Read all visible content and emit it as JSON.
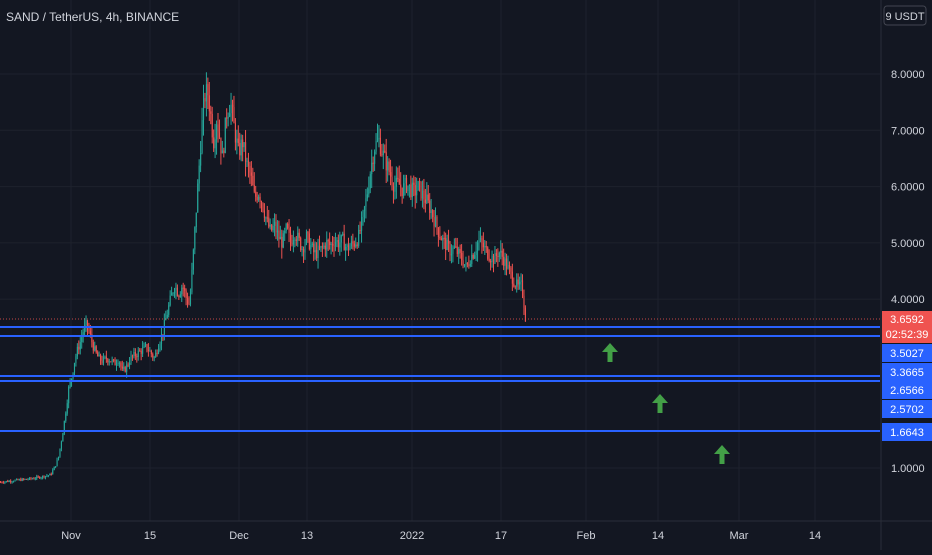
{
  "header": {
    "title": "SAND / TetherUS, 4h, BINANCE"
  },
  "colors": {
    "background": "#131722",
    "grid": "#1e222d",
    "axis_text": "#d1d4dc",
    "up": "#26a69a",
    "down": "#ef5350",
    "level_line": "#2962ff",
    "arrow": "#43a047",
    "price_dot_line": "#ef5350"
  },
  "chart_data": {
    "type": "candlestick",
    "price_scale": {
      "unit_label": "9 USDT",
      "ticks": [
        "8.0000",
        "7.0000",
        "6.0000",
        "5.0000",
        "4.0000",
        "1.0000"
      ],
      "tick_values": [
        8,
        7,
        6,
        5,
        4,
        1
      ]
    },
    "time_axis": {
      "labels": [
        "Nov",
        "15",
        "Dec",
        "13",
        "2022",
        "17",
        "Feb",
        "14",
        "Mar",
        "14"
      ]
    },
    "current_price": {
      "value": "3.6592",
      "countdown": "02:52:39"
    },
    "levels": [
      {
        "label": "3.5027"
      },
      {
        "label": "3.3665"
      },
      {
        "label": "2.6566"
      },
      {
        "label": "2.5702"
      },
      {
        "label": "1.6643"
      }
    ],
    "price_path": [
      [
        0,
        0.75
      ],
      [
        10,
        0.77
      ],
      [
        20,
        0.79
      ],
      [
        30,
        0.81
      ],
      [
        40,
        0.84
      ],
      [
        50,
        0.88
      ],
      [
        55,
        1.05
      ],
      [
        58,
        1.2
      ],
      [
        62,
        1.6
      ],
      [
        66,
        2.1
      ],
      [
        68,
        2.4
      ],
      [
        71,
        2.6
      ],
      [
        74,
        2.9
      ],
      [
        77,
        3.1
      ],
      [
        80,
        3.25
      ],
      [
        83,
        3.45
      ],
      [
        86,
        3.55
      ],
      [
        89,
        3.4
      ],
      [
        92,
        3.2
      ],
      [
        95,
        3.05
      ],
      [
        98,
        2.95
      ],
      [
        102,
        2.9
      ],
      [
        106,
        2.95
      ],
      [
        110,
        2.92
      ],
      [
        114,
        2.85
      ],
      [
        118,
        2.95
      ],
      [
        122,
        2.7
      ],
      [
        126,
        2.8
      ],
      [
        130,
        2.95
      ],
      [
        134,
        3.0
      ],
      [
        138,
        3.05
      ],
      [
        142,
        3.1
      ],
      [
        146,
        3.15
      ],
      [
        150,
        3.05
      ],
      [
        154,
        2.95
      ],
      [
        158,
        3.2
      ],
      [
        162,
        3.4
      ],
      [
        166,
        3.7
      ],
      [
        170,
        4.0
      ],
      [
        174,
        4.25
      ],
      [
        178,
        4.1
      ],
      [
        182,
        4.25
      ],
      [
        186,
        4.0
      ],
      [
        189,
        3.9
      ],
      [
        192,
        4.6
      ],
      [
        195,
        5.4
      ],
      [
        198,
        6.2
      ],
      [
        201,
        7.0
      ],
      [
        204,
        7.6
      ],
      [
        207,
        7.7
      ],
      [
        210,
        7.3
      ],
      [
        213,
        6.8
      ],
      [
        216,
        7.2
      ],
      [
        219,
        6.9
      ],
      [
        222,
        6.5
      ],
      [
        226,
        7.3
      ],
      [
        230,
        7.5
      ],
      [
        234,
        7.0
      ],
      [
        238,
        6.6
      ],
      [
        242,
        6.8
      ],
      [
        246,
        6.4
      ],
      [
        250,
        6.2
      ],
      [
        254,
        5.8
      ],
      [
        258,
        5.9
      ],
      [
        262,
        5.7
      ],
      [
        266,
        5.4
      ],
      [
        270,
        5.2
      ],
      [
        274,
        5.3
      ],
      [
        278,
        5.1
      ],
      [
        282,
        5.0
      ],
      [
        286,
        5.25
      ],
      [
        290,
        5.0
      ],
      [
        294,
        5.2
      ],
      [
        298,
        5.05
      ],
      [
        302,
        4.9
      ],
      [
        306,
        5.1
      ],
      [
        310,
        4.95
      ],
      [
        314,
        4.8
      ],
      [
        318,
        4.85
      ],
      [
        322,
        4.9
      ],
      [
        326,
        5.0
      ],
      [
        330,
        4.95
      ],
      [
        334,
        5.05
      ],
      [
        338,
        5.0
      ],
      [
        342,
        5.05
      ],
      [
        346,
        4.9
      ],
      [
        350,
        4.95
      ],
      [
        354,
        5.0
      ],
      [
        358,
        5.1
      ],
      [
        362,
        5.4
      ],
      [
        366,
        5.8
      ],
      [
        370,
        6.3
      ],
      [
        374,
        6.7
      ],
      [
        378,
        6.85
      ],
      [
        382,
        6.6
      ],
      [
        386,
        6.4
      ],
      [
        390,
        6.2
      ],
      [
        394,
        6.0
      ],
      [
        398,
        6.05
      ],
      [
        402,
        5.95
      ],
      [
        406,
        6.05
      ],
      [
        410,
        5.95
      ],
      [
        414,
        5.9
      ],
      [
        418,
        6.0
      ],
      [
        422,
        5.85
      ],
      [
        426,
        5.75
      ],
      [
        430,
        5.6
      ],
      [
        434,
        5.4
      ],
      [
        438,
        5.2
      ],
      [
        442,
        5.05
      ],
      [
        446,
        4.95
      ],
      [
        450,
        4.85
      ],
      [
        454,
        4.9
      ],
      [
        458,
        4.8
      ],
      [
        462,
        4.7
      ],
      [
        466,
        4.55
      ],
      [
        470,
        4.75
      ],
      [
        474,
        4.85
      ],
      [
        478,
        5.05
      ],
      [
        482,
        4.95
      ],
      [
        486,
        4.85
      ],
      [
        490,
        4.75
      ],
      [
        494,
        4.7
      ],
      [
        498,
        4.85
      ],
      [
        502,
        4.75
      ],
      [
        506,
        4.6
      ],
      [
        510,
        4.45
      ],
      [
        514,
        4.3
      ],
      [
        518,
        4.2
      ],
      [
        521,
        4.25
      ],
      [
        523,
        4.0
      ],
      [
        525,
        3.66
      ]
    ]
  }
}
